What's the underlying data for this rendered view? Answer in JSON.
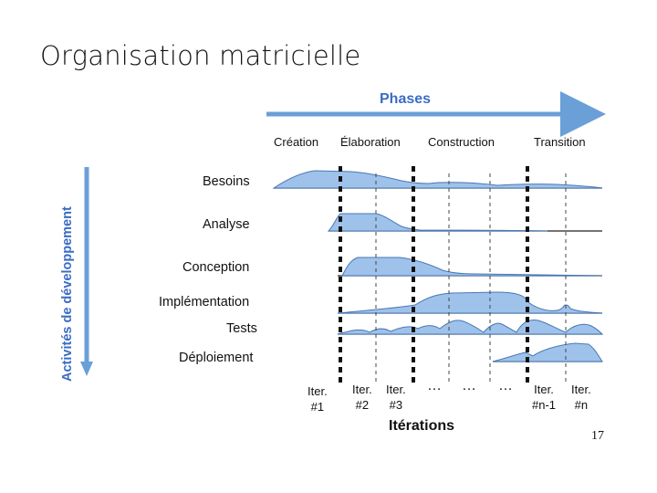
{
  "title": "Organisation matricielle",
  "phases_label": "Phases",
  "phases": [
    "Création",
    "Élaboration",
    "Construction",
    "Transition"
  ],
  "vertical_axis_label": "Activités de développement",
  "activities": [
    "Besoins",
    "Analyse",
    "Conception",
    "Implémentation",
    "Tests",
    "Déploiement"
  ],
  "iterations": [
    {
      "line1": "Iter.",
      "line2": "#1"
    },
    {
      "line1": "Iter.",
      "line2": "#2"
    },
    {
      "line1": "Iter.",
      "line2": "#3"
    },
    {
      "line1": "Iter.",
      "line2": "#n-1"
    },
    {
      "line1": "Iter.",
      "line2": "#n"
    }
  ],
  "ellipsis": "…",
  "iterations_label": "Itérations",
  "page_number": "17",
  "colors": {
    "accent": "#6a9fd8",
    "fill": "#9ec2ea",
    "stroke": "#4a78b5",
    "text_blue": "#3b6cc4"
  }
}
